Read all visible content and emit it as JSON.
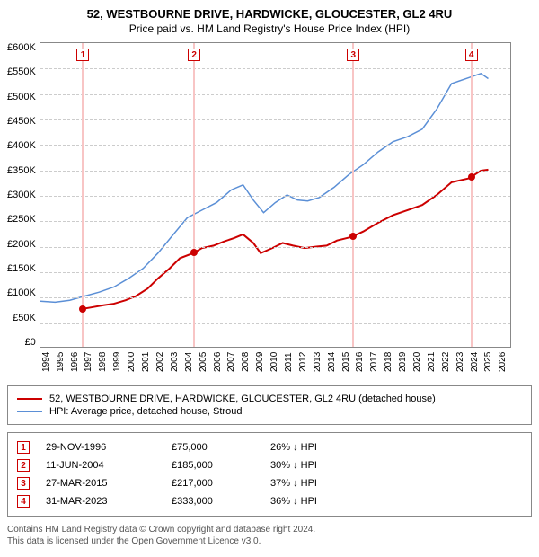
{
  "title": "52, WESTBOURNE DRIVE, HARDWICKE, GLOUCESTER, GL2 4RU",
  "subtitle": "Price paid vs. HM Land Registry's House Price Index (HPI)",
  "chart": {
    "type": "line",
    "xlim": [
      1994,
      2026
    ],
    "ylim": [
      0,
      600000
    ],
    "ytick_step": 50000,
    "ytick_labels": [
      "£600K",
      "£550K",
      "£500K",
      "£450K",
      "£400K",
      "£350K",
      "£300K",
      "£250K",
      "£200K",
      "£150K",
      "£100K",
      "£50K",
      "£0"
    ],
    "xtick_labels": [
      "1994",
      "1995",
      "1996",
      "1997",
      "1998",
      "1999",
      "2000",
      "2001",
      "2002",
      "2003",
      "2004",
      "2005",
      "2006",
      "2007",
      "2008",
      "2009",
      "2010",
      "2011",
      "2012",
      "2013",
      "2014",
      "2015",
      "2016",
      "2017",
      "2018",
      "2019",
      "2020",
      "2021",
      "2022",
      "2023",
      "2024",
      "2025",
      "2026"
    ],
    "background_color": "#ffffff",
    "grid_color": "#cccccc",
    "border_color": "#888888",
    "series": [
      {
        "name": "property",
        "label": "52, WESTBOURNE DRIVE, HARDWICKE, GLOUCESTER, GL2 4RU (detached house)",
        "color": "#cc0000",
        "line_width": 2,
        "data": [
          [
            1996.9,
            75000
          ],
          [
            1997.5,
            78000
          ],
          [
            1998.3,
            82000
          ],
          [
            1999.0,
            85000
          ],
          [
            1999.8,
            92000
          ],
          [
            2000.5,
            100000
          ],
          [
            2001.3,
            115000
          ],
          [
            2002.0,
            135000
          ],
          [
            2002.8,
            155000
          ],
          [
            2003.5,
            175000
          ],
          [
            2004.4,
            185000
          ],
          [
            2005.0,
            195000
          ],
          [
            2005.8,
            200000
          ],
          [
            2006.5,
            208000
          ],
          [
            2007.2,
            215000
          ],
          [
            2007.8,
            222000
          ],
          [
            2008.5,
            205000
          ],
          [
            2009.0,
            185000
          ],
          [
            2009.8,
            195000
          ],
          [
            2010.5,
            205000
          ],
          [
            2011.2,
            200000
          ],
          [
            2012.0,
            195000
          ],
          [
            2012.8,
            198000
          ],
          [
            2013.5,
            200000
          ],
          [
            2014.2,
            210000
          ],
          [
            2015.2,
            217000
          ],
          [
            2016.0,
            228000
          ],
          [
            2017.0,
            245000
          ],
          [
            2018.0,
            260000
          ],
          [
            2019.0,
            270000
          ],
          [
            2020.0,
            280000
          ],
          [
            2021.0,
            300000
          ],
          [
            2022.0,
            325000
          ],
          [
            2023.2,
            333000
          ],
          [
            2024.0,
            348000
          ],
          [
            2024.5,
            350000
          ]
        ]
      },
      {
        "name": "hpi",
        "label": "HPI: Average price, detached house, Stroud",
        "color": "#5b8fd6",
        "line_width": 1.5,
        "data": [
          [
            1994.0,
            90000
          ],
          [
            1995.0,
            88000
          ],
          [
            1996.0,
            92000
          ],
          [
            1997.0,
            100000
          ],
          [
            1998.0,
            108000
          ],
          [
            1999.0,
            118000
          ],
          [
            2000.0,
            135000
          ],
          [
            2001.0,
            155000
          ],
          [
            2002.0,
            185000
          ],
          [
            2003.0,
            220000
          ],
          [
            2004.0,
            255000
          ],
          [
            2005.0,
            270000
          ],
          [
            2006.0,
            285000
          ],
          [
            2007.0,
            310000
          ],
          [
            2007.8,
            320000
          ],
          [
            2008.5,
            290000
          ],
          [
            2009.2,
            265000
          ],
          [
            2010.0,
            285000
          ],
          [
            2010.8,
            300000
          ],
          [
            2011.5,
            290000
          ],
          [
            2012.2,
            288000
          ],
          [
            2013.0,
            295000
          ],
          [
            2014.0,
            315000
          ],
          [
            2015.0,
            340000
          ],
          [
            2016.0,
            360000
          ],
          [
            2017.0,
            385000
          ],
          [
            2018.0,
            405000
          ],
          [
            2019.0,
            415000
          ],
          [
            2020.0,
            430000
          ],
          [
            2021.0,
            470000
          ],
          [
            2022.0,
            520000
          ],
          [
            2023.0,
            530000
          ],
          [
            2024.0,
            540000
          ],
          [
            2024.5,
            530000
          ]
        ]
      }
    ],
    "events": [
      {
        "num": "1",
        "year": 1996.9,
        "price": 75000
      },
      {
        "num": "2",
        "year": 2004.44,
        "price": 185000
      },
      {
        "num": "3",
        "year": 2015.24,
        "price": 217000
      },
      {
        "num": "4",
        "year": 2023.25,
        "price": 333000
      }
    ]
  },
  "legend": {
    "entries": [
      {
        "color": "#cc0000",
        "label": "52, WESTBOURNE DRIVE, HARDWICKE, GLOUCESTER, GL2 4RU (detached house)"
      },
      {
        "color": "#5b8fd6",
        "label": "HPI: Average price, detached house, Stroud"
      }
    ]
  },
  "events_table": [
    {
      "num": "1",
      "date": "29-NOV-1996",
      "price": "£75,000",
      "diff": "26% ↓ HPI"
    },
    {
      "num": "2",
      "date": "11-JUN-2004",
      "price": "£185,000",
      "diff": "30% ↓ HPI"
    },
    {
      "num": "3",
      "date": "27-MAR-2015",
      "price": "£217,000",
      "diff": "37% ↓ HPI"
    },
    {
      "num": "4",
      "date": "31-MAR-2023",
      "price": "£333,000",
      "diff": "36% ↓ HPI"
    }
  ],
  "footer": {
    "line1": "Contains HM Land Registry data © Crown copyright and database right 2024.",
    "line2": "This data is licensed under the Open Government Licence v3.0."
  }
}
